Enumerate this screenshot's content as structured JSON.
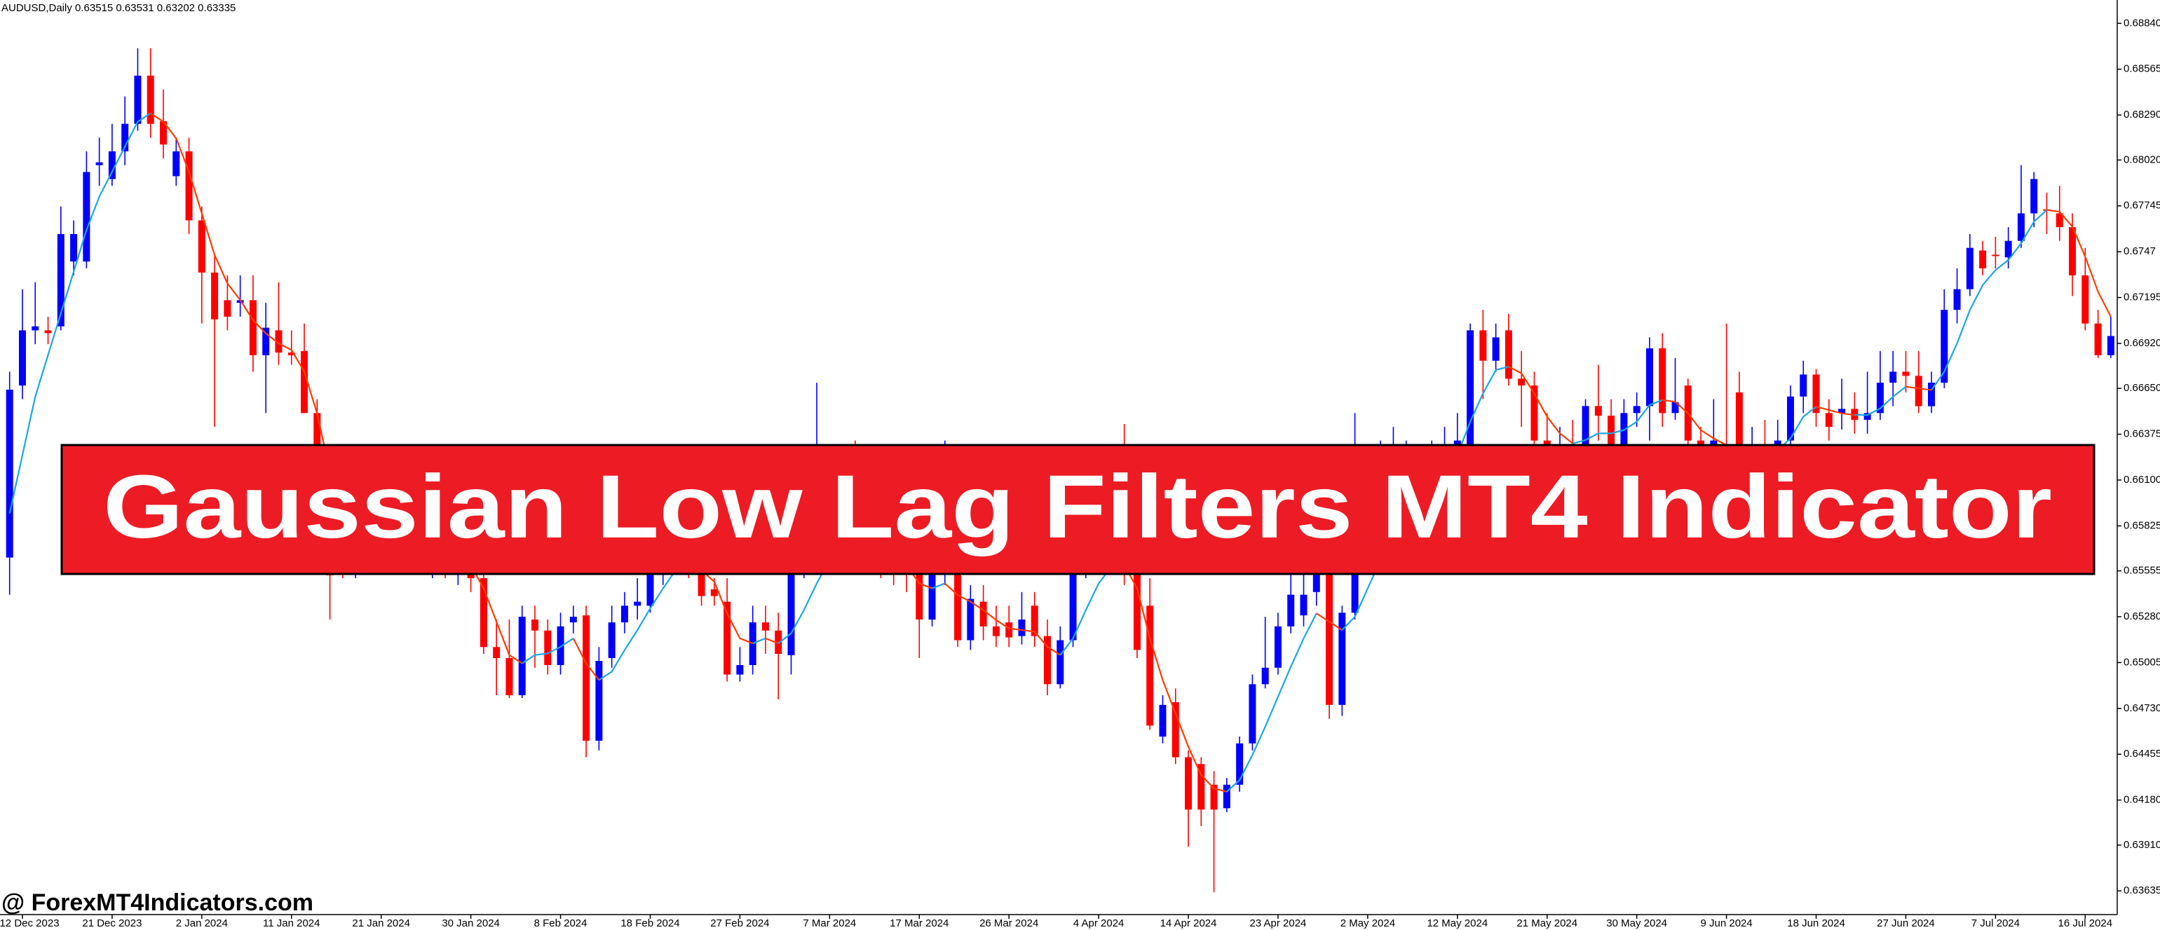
{
  "chart_data": {
    "type": "candlestick",
    "title": "AUDUSD,Daily  0.63515 0.63531 0.63202 0.63335",
    "annotations": [
      "Gaussian Low Lag Filters MT4 Indicator",
      "@ ForexMT4Indicators.com"
    ],
    "bull_color": "#0000ff",
    "bear_color": "#ff0000",
    "grid": false,
    "xlim": [
      -0.75,
      164.5
    ],
    "ylim": [
      0.63493,
      0.6898
    ],
    "yticks": [
      {
        "value": 0.6884,
        "label": "0.68840"
      },
      0.68565,
      {
        "value": 0.6829,
        "label": "0.68290"
      },
      {
        "value": 0.6802,
        "label": "0.68020"
      },
      0.67745,
      0.6747,
      0.67195,
      {
        "value": 0.6692,
        "label": "0.66920"
      },
      {
        "value": 0.6665,
        "label": "0.66650"
      },
      0.66375,
      {
        "value": 0.661,
        "label": "0.66100"
      },
      0.65825,
      0.65555,
      {
        "value": 0.6528,
        "label": "0.65280"
      },
      0.65005,
      {
        "value": 0.6473,
        "label": "0.64730"
      },
      0.64455,
      {
        "value": 0.6418,
        "label": "0.64180"
      },
      {
        "value": 0.6391,
        "label": "0.63910"
      },
      0.63635
    ],
    "xticks": [
      {
        "value": 1,
        "label": "12 Dec 2023"
      },
      {
        "value": 8,
        "label": "21 Dec 2023"
      },
      {
        "value": 15,
        "label": "2 Jan 2024"
      },
      {
        "value": 22,
        "label": "11 Jan 2024"
      },
      {
        "value": 29,
        "label": "21 Jan 2024"
      },
      {
        "value": 36,
        "label": "30 Jan 2024"
      },
      {
        "value": 43,
        "label": "8 Feb 2024"
      },
      {
        "value": 50,
        "label": "18 Feb 2024"
      },
      {
        "value": 57,
        "label": "27 Feb 2024"
      },
      {
        "value": 64,
        "label": "7 Mar 2024"
      },
      {
        "value": 71,
        "label": "17 Mar 2024"
      },
      {
        "value": 78,
        "label": "26 Mar 2024"
      },
      {
        "value": 85,
        "label": "4 Apr 2024"
      },
      {
        "value": 92,
        "label": "14 Apr 2024"
      },
      {
        "value": 99,
        "label": "23 Apr 2024"
      },
      {
        "value": 106,
        "label": "2 May 2024"
      },
      {
        "value": 113,
        "label": "12 May 2024"
      },
      {
        "value": 120,
        "label": "21 May 2024"
      },
      {
        "value": 127,
        "label": "30 May 2024"
      },
      {
        "value": 134,
        "label": "9 Jun 2024"
      },
      {
        "value": 141,
        "label": "18 Jun 2024"
      },
      {
        "value": 148,
        "label": "27 Jun 2024"
      },
      {
        "value": 155,
        "label": "7 Jul 2024"
      },
      {
        "value": 162,
        "label": "16 Jul 2024"
      }
    ],
    "open": [
      0.65635,
      0.66667,
      0.66998,
      0.66998,
      0.67022,
      0.67411,
      0.67411,
      0.67989,
      0.67906,
      0.68072,
      0.68237,
      0.68526,
      0.68253,
      0.67923,
      0.68072,
      0.67658,
      0.67345,
      0.67179,
      0.67163,
      0.67179,
      0.66849,
      0.66998,
      0.66865,
      0.66874,
      0.66502,
      0.66171,
      0.65676,
      0.65593,
      0.65717,
      0.65635,
      0.65759,
      0.65676,
      0.65717,
      0.65635,
      0.65676,
      0.65593,
      0.65635,
      0.65511,
      0.65098,
      0.65032,
      0.64809,
      0.65263,
      0.65197,
      0.6499,
      0.65246,
      0.65288,
      0.64536,
      0.65032,
      0.65246,
      0.65346,
      0.65346,
      0.65536,
      0.65635,
      0.65676,
      0.65593,
      0.65445,
      0.6537,
      0.64933,
      0.6499,
      0.65246,
      0.65197,
      0.65049,
      0.65552,
      0.65676,
      0.65759,
      0.65841,
      0.658,
      0.65717,
      0.65676,
      0.65593,
      0.65552,
      0.65536,
      0.65263,
      0.65536,
      0.65593,
      0.65139,
      0.6537,
      0.65222,
      0.65246,
      0.65164,
      0.65346,
      0.65164,
      0.64875,
      0.65139,
      0.65536,
      0.65635,
      0.65676,
      0.65593,
      0.65536,
      0.65346,
      0.64561,
      0.64767,
      0.64437,
      0.64396,
      0.64272,
      0.64131,
      0.64272,
      0.6452,
      0.64875,
      0.64974,
      0.65222,
      0.65288,
      0.65428,
      0.65536,
      0.64751,
      0.65304,
      0.65676,
      0.65759,
      0.65924,
      0.66006,
      0.66089,
      0.6613,
      0.66171,
      0.66254,
      0.66254,
      0.66998,
      0.66816,
      0.66998,
      0.66708,
      0.66667,
      0.66337,
      0.66254,
      0.66296,
      0.66254,
      0.66544,
      0.66486,
      0.66254,
      0.66502,
      0.66544,
      0.6689,
      0.66502,
      0.66667,
      0.66337,
      0.66254,
      0.66296,
      0.66626,
      0.66254,
      0.66296,
      0.66254,
      0.66337,
      0.66601,
      0.66733,
      0.66502,
      0.66502,
      0.66527,
      0.66461,
      0.66502,
      0.66684,
      0.6675,
      0.66725,
      0.66543,
      0.66684,
      0.67121,
      0.67245,
      0.67477,
      0.67452,
      0.67436,
      0.67535,
      0.677,
      0.67724,
      0.677,
      0.67617,
      0.67328,
      0.67039,
      0.66849
    ],
    "high": [
      0.6675,
      0.67245,
      0.67287,
      0.6708,
      0.67741,
      0.67658,
      0.68072,
      0.68154,
      0.68237,
      0.68402,
      0.68691,
      0.68691,
      0.68443,
      0.68154,
      0.68154,
      0.67741,
      0.67452,
      0.67328,
      0.67328,
      0.67328,
      0.67163,
      0.67287,
      0.66998,
      0.67039,
      0.66585,
      0.66254,
      0.65841,
      0.658,
      0.65841,
      0.65841,
      0.65883,
      0.65841,
      0.658,
      0.65759,
      0.65759,
      0.65717,
      0.65717,
      0.65593,
      0.65263,
      0.65263,
      0.65346,
      0.65346,
      0.65263,
      0.65304,
      0.65346,
      0.65346,
      0.65098,
      0.65346,
      0.65428,
      0.65511,
      0.65676,
      0.65759,
      0.65841,
      0.65759,
      0.65676,
      0.65511,
      0.65511,
      0.65098,
      0.65346,
      0.65346,
      0.65304,
      0.65593,
      0.65759,
      0.66684,
      0.66006,
      0.66296,
      0.66337,
      0.65841,
      0.658,
      0.65717,
      0.65676,
      0.65635,
      0.65593,
      0.66337,
      0.65676,
      0.6547,
      0.6547,
      0.65346,
      0.65346,
      0.65428,
      0.65428,
      0.65263,
      0.65222,
      0.65676,
      0.65759,
      0.658,
      0.65759,
      0.66436,
      0.65635,
      0.65511,
      0.64809,
      0.6485,
      0.64478,
      0.64437,
      0.64354,
      0.64313,
      0.64561,
      0.64933,
      0.6528,
      0.65304,
      0.65552,
      0.65676,
      0.65635,
      0.65676,
      0.65346,
      0.66502,
      0.66254,
      0.66337,
      0.66419,
      0.66337,
      0.66296,
      0.66337,
      0.66419,
      0.66502,
      0.67039,
      0.67121,
      0.67039,
      0.67097,
      0.66874,
      0.6675,
      0.66502,
      0.66419,
      0.66461,
      0.66585,
      0.66791,
      0.66585,
      0.66585,
      0.66626,
      0.66956,
      0.66981,
      0.66832,
      0.66708,
      0.66419,
      0.66585,
      0.67039,
      0.6675,
      0.66419,
      0.66461,
      0.66461,
      0.66667,
      0.66816,
      0.66766,
      0.66585,
      0.66708,
      0.66626,
      0.6675,
      0.66874,
      0.66874,
      0.66874,
      0.66874,
      0.6675,
      0.67245,
      0.6737,
      0.67576,
      0.67535,
      0.67559,
      0.67617,
      0.67989,
      0.67948,
      0.67824,
      0.67865,
      0.677,
      0.67493,
      0.67121,
      0.6708
    ],
    "low": [
      0.65412,
      0.66585,
      0.66915,
      0.66915,
      0.66998,
      0.67328,
      0.6737,
      0.67865,
      0.67865,
      0.67989,
      0.68195,
      0.68154,
      0.6803,
      0.67865,
      0.67576,
      0.67039,
      0.66419,
      0.66998,
      0.6708,
      0.6675,
      0.66502,
      0.66791,
      0.66791,
      0.66502,
      0.66089,
      0.65263,
      0.65511,
      0.65511,
      0.65552,
      0.65552,
      0.65593,
      0.65577,
      0.65552,
      0.65511,
      0.65511,
      0.6547,
      0.65428,
      0.65057,
      0.64809,
      0.64792,
      0.64792,
      0.64974,
      0.64933,
      0.64933,
      0.6518,
      0.64437,
      0.64478,
      0.64974,
      0.6518,
      0.65263,
      0.65304,
      0.6547,
      0.65552,
      0.65511,
      0.65346,
      0.65346,
      0.64891,
      0.64891,
      0.64933,
      0.65057,
      0.64784,
      0.64933,
      0.65511,
      0.65593,
      0.65676,
      0.65717,
      0.65676,
      0.65593,
      0.65511,
      0.6547,
      0.65428,
      0.65032,
      0.65222,
      0.6547,
      0.65098,
      0.65081,
      0.65139,
      0.65098,
      0.65098,
      0.65114,
      0.65098,
      0.64809,
      0.6485,
      0.65098,
      0.65511,
      0.65577,
      0.65552,
      0.6547,
      0.65032,
      0.64602,
      0.6452,
      0.64396,
      0.639,
      0.64024,
      0.63627,
      0.64107,
      0.6423,
      0.64478,
      0.6485,
      0.64933,
      0.6518,
      0.65222,
      0.65346,
      0.64668,
      0.64685,
      0.65263,
      0.65635,
      0.65717,
      0.65883,
      0.65924,
      0.66006,
      0.66047,
      0.66089,
      0.66171,
      0.66213,
      0.66585,
      0.6675,
      0.66667,
      0.66419,
      0.66254,
      0.66171,
      0.66171,
      0.6613,
      0.66213,
      0.66337,
      0.66171,
      0.66213,
      0.66419,
      0.66337,
      0.66419,
      0.66461,
      0.66254,
      0.66171,
      0.66171,
      0.66171,
      0.66171,
      0.66171,
      0.66171,
      0.66213,
      0.66296,
      0.66502,
      0.66419,
      0.66337,
      0.66403,
      0.66378,
      0.66378,
      0.66461,
      0.66543,
      0.66626,
      0.66502,
      0.66502,
      0.66651,
      0.67039,
      0.67204,
      0.67328,
      0.6737,
      0.6737,
      0.67493,
      0.67617,
      0.67576,
      0.67535,
      0.67204,
      0.66998,
      0.66832,
      0.66832
    ],
    "close": [
      0.66642,
      0.66998,
      0.67022,
      0.66981,
      0.67576,
      0.67576,
      0.67948,
      0.68006,
      0.68072,
      0.68237,
      0.68526,
      0.68237,
      0.68113,
      0.68072,
      0.67658,
      0.67345,
      0.67064,
      0.6708,
      0.67179,
      0.66849,
      0.67014,
      0.66865,
      0.66849,
      0.66502,
      0.66171,
      0.65528,
      0.65593,
      0.65717,
      0.65635,
      0.65759,
      0.65676,
      0.65717,
      0.65635,
      0.65676,
      0.65593,
      0.65635,
      0.65511,
      0.65098,
      0.65032,
      0.64809,
      0.6528,
      0.65197,
      0.6499,
      0.65222,
      0.6528,
      0.64536,
      0.65015,
      0.65246,
      0.65346,
      0.6537,
      0.65536,
      0.65635,
      0.65676,
      0.65593,
      0.65404,
      0.65404,
      0.64933,
      0.6499,
      0.65246,
      0.65197,
      0.65057,
      0.65552,
      0.65676,
      0.65759,
      0.65841,
      0.658,
      0.65717,
      0.65676,
      0.65593,
      0.65552,
      0.65536,
      0.65263,
      0.65536,
      0.65635,
      0.65139,
      0.65387,
      0.65222,
      0.65164,
      0.65156,
      0.65263,
      0.65164,
      0.64875,
      0.65139,
      0.65536,
      0.65635,
      0.65676,
      0.65593,
      0.65536,
      0.65081,
      0.64627,
      0.64751,
      0.64437,
      0.64123,
      0.64123,
      0.64123,
      0.64272,
      0.6452,
      0.64875,
      0.64974,
      0.65222,
      0.65412,
      0.65412,
      0.65536,
      0.64751,
      0.65304,
      0.65676,
      0.65759,
      0.65924,
      0.66006,
      0.66089,
      0.6613,
      0.66171,
      0.66254,
      0.66337,
      0.66998,
      0.66816,
      0.66956,
      0.66708,
      0.66667,
      0.66337,
      0.66254,
      0.66296,
      0.66254,
      0.66544,
      0.66486,
      0.66254,
      0.66502,
      0.66544,
      0.6689,
      0.66502,
      0.66568,
      0.66337,
      0.66254,
      0.66337,
      0.66254,
      0.66254,
      0.66296,
      0.66254,
      0.66337,
      0.66601,
      0.66733,
      0.66502,
      0.66419,
      0.66527,
      0.66461,
      0.66502,
      0.66684,
      0.6675,
      0.66725,
      0.66543,
      0.66684,
      0.67121,
      0.67245,
      0.67493,
      0.6737,
      0.67444,
      0.67535,
      0.677,
      0.67906,
      0.67716,
      0.67617,
      0.67328,
      0.67039,
      0.66849,
      0.66964
    ],
    "filter": {
      "up_color": "#1aa7e6",
      "down_color": "#ff3c00",
      "values": [
        0.659,
        0.6625,
        0.666,
        0.6685,
        0.671,
        0.6735,
        0.676,
        0.678,
        0.6795,
        0.681,
        0.6825,
        0.683,
        0.6825,
        0.6815,
        0.6795,
        0.677,
        0.6745,
        0.6728,
        0.6718,
        0.6706,
        0.6698,
        0.6692,
        0.6688,
        0.6675,
        0.665,
        0.6615,
        0.659,
        0.6575,
        0.657,
        0.6569,
        0.6569,
        0.6569,
        0.6568,
        0.6566,
        0.6564,
        0.6562,
        0.6559,
        0.6545,
        0.6525,
        0.6505,
        0.65,
        0.6505,
        0.6506,
        0.651,
        0.6515,
        0.65,
        0.649,
        0.6495,
        0.6508,
        0.652,
        0.6533,
        0.6545,
        0.6556,
        0.656,
        0.6556,
        0.6549,
        0.653,
        0.6515,
        0.6512,
        0.6515,
        0.6512,
        0.6518,
        0.6532,
        0.6548,
        0.6562,
        0.6572,
        0.6576,
        0.6574,
        0.657,
        0.6564,
        0.6559,
        0.6548,
        0.6545,
        0.6548,
        0.6541,
        0.6537,
        0.6532,
        0.6526,
        0.6521,
        0.652,
        0.6519,
        0.651,
        0.6505,
        0.6515,
        0.6532,
        0.6548,
        0.6558,
        0.6559,
        0.6545,
        0.6515,
        0.649,
        0.647,
        0.645,
        0.6433,
        0.6425,
        0.6423,
        0.643,
        0.6445,
        0.6462,
        0.648,
        0.6498,
        0.6515,
        0.653,
        0.6525,
        0.652,
        0.6528,
        0.6545,
        0.6562,
        0.6578,
        0.6592,
        0.6602,
        0.661,
        0.6617,
        0.6625,
        0.6645,
        0.6662,
        0.6676,
        0.6678,
        0.6674,
        0.6662,
        0.6648,
        0.6638,
        0.6632,
        0.6634,
        0.6638,
        0.6638,
        0.664,
        0.6645,
        0.6655,
        0.6658,
        0.6657,
        0.665,
        0.664,
        0.6635,
        0.6631,
        0.6628,
        0.6627,
        0.6627,
        0.6628,
        0.6635,
        0.6648,
        0.6654,
        0.6652,
        0.665,
        0.6649,
        0.6649,
        0.6653,
        0.666,
        0.6666,
        0.6665,
        0.6664,
        0.6675,
        0.6692,
        0.6712,
        0.6727,
        0.6736,
        0.6742,
        0.6752,
        0.6765,
        0.6772,
        0.6771,
        0.6762,
        0.6744,
        0.6723,
        0.6708
      ]
    }
  }
}
